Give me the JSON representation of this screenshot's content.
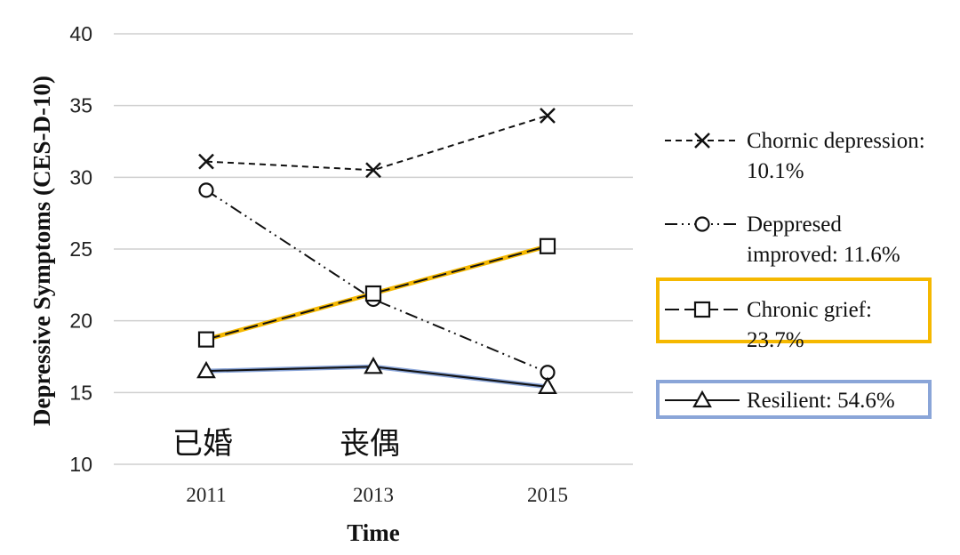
{
  "chart_data": {
    "type": "line",
    "title": "",
    "xlabel": "Time",
    "ylabel": "Depressive Symptoms (CES-D-10)",
    "categories": [
      "2011",
      "2013",
      "2015"
    ],
    "ylim": [
      10,
      40
    ],
    "yticks": [
      "10",
      "15",
      "20",
      "25",
      "30",
      "35",
      "40"
    ],
    "grid": true,
    "legend_position": "right",
    "series": [
      {
        "name": "Chornic depression: 10.1%",
        "name_lines": [
          "Chornic depression:",
          "10.1%"
        ],
        "values": [
          31.1,
          30.5,
          34.3
        ],
        "marker": "x",
        "dash": "dashed",
        "color": "#111111"
      },
      {
        "name": "Deppresed improved: 11.6%",
        "name_lines": [
          "Deppresed",
          "improved: 11.6%"
        ],
        "values": [
          29.1,
          21.5,
          16.4
        ],
        "marker": "circle",
        "dash": "dash-dot-dot",
        "color": "#111111"
      },
      {
        "name": "Chronic grief: 23.7%",
        "name_lines": [
          "Chronic grief:",
          "23.7%"
        ],
        "values": [
          18.7,
          21.9,
          25.2
        ],
        "marker": "square",
        "dash": "long-dash",
        "color": "#111111",
        "highlight_color": "#F5B800"
      },
      {
        "name": "Resilient: 54.6%",
        "name_lines": [
          "Resilient: 54.6%"
        ],
        "values": [
          16.5,
          16.8,
          15.4
        ],
        "marker": "triangle",
        "dash": "solid",
        "color": "#111111",
        "highlight_color": "#8AA5D8"
      }
    ],
    "annotations": [
      {
        "text": "已婚",
        "category": "2011"
      },
      {
        "text": "丧偶",
        "category": "2013"
      }
    ]
  }
}
